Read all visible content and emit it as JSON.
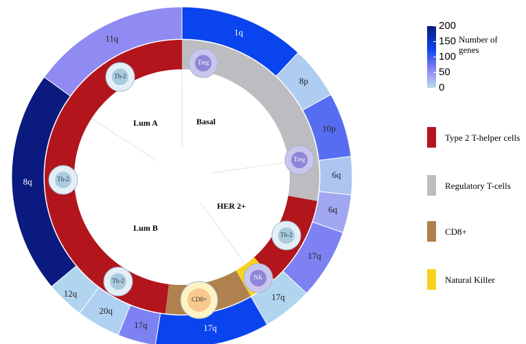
{
  "colorbar": {
    "title": "Number of genes",
    "lim": [
      0,
      200
    ],
    "ticks": [
      0,
      50,
      100,
      150,
      200
    ],
    "colorscale": [
      [
        0,
        "#b3dcef"
      ],
      [
        50,
        "#9a90f3"
      ],
      [
        125,
        "#0a44ef"
      ],
      [
        200,
        "#0a1a7e"
      ]
    ]
  },
  "chromosome_arms": [
    {
      "label": "1q",
      "genes": 125
    },
    {
      "label": "8p",
      "genes": 10
    },
    {
      "label": "10p",
      "genes": 85
    },
    {
      "label": "6q",
      "genes": 15
    },
    {
      "label": "6q",
      "genes": 35
    },
    {
      "label": "17q",
      "genes": 65
    },
    {
      "label": "17q",
      "genes": 5
    },
    {
      "label": "17q",
      "genes": 125
    },
    {
      "label": "17q",
      "genes": 65
    },
    {
      "label": "20q",
      "genes": 8
    },
    {
      "label": "12q",
      "genes": 5
    },
    {
      "label": "8q",
      "genes": 200
    },
    {
      "label": "11q",
      "genes": 55
    }
  ],
  "subtypes": [
    "Basal",
    "HER 2+",
    "Lum B",
    "Lum A"
  ],
  "cells": [
    "Th-2",
    "Treg",
    "Treg",
    "Th-2",
    "NK",
    "CD8+",
    "Th-2",
    "Th-2"
  ],
  "legend": [
    {
      "label": "Type 2 T-helper cells",
      "color": "#b2151c"
    },
    {
      "label": "Regulatory T-cells",
      "color": "#bdbdc1"
    },
    {
      "label": "CD8+",
      "color": "#b0814f"
    },
    {
      "label": "Natural Killer",
      "color": "#f6d21c"
    }
  ]
}
